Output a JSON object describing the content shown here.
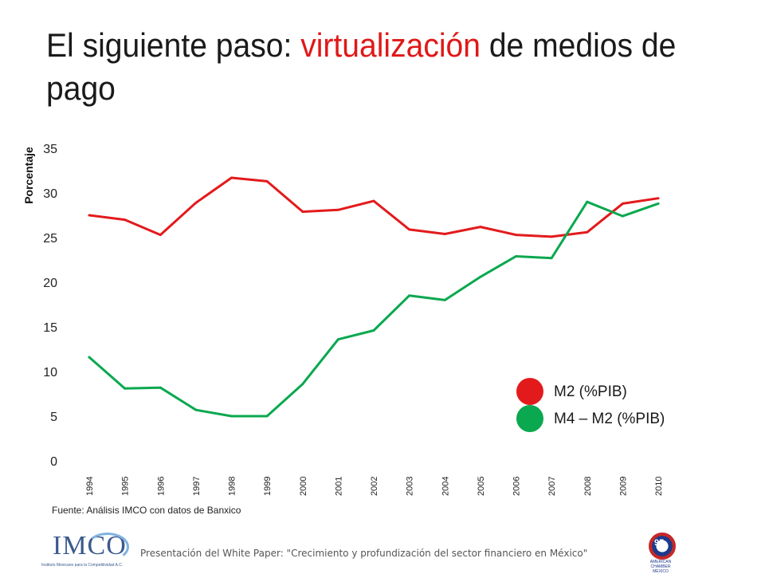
{
  "slide": {
    "title_before": "El siguiente paso: ",
    "title_accent": "virtualización",
    "title_after": " de medios de pago",
    "source": "Fuente: Análisis IMCO con datos de Banxico",
    "footer_text": "Presentación del White Paper: \"Crecimiento y profundización del sector financiero en México\""
  },
  "logos": {
    "left": {
      "name": "imco-logo",
      "word": "IMCO",
      "subtitle": "Instituto Mexicano para la Competitividad A.C."
    },
    "right": {
      "name": "american-chamber-logo",
      "number": "95",
      "line1": "AMERICAN CHAMBER",
      "line2": "MÉXICO"
    }
  },
  "chart_data": {
    "type": "line",
    "title": "",
    "xlabel": "",
    "ylabel": "Porcentaje",
    "ylim": [
      0,
      35
    ],
    "yticks": [
      0,
      5,
      10,
      15,
      20,
      25,
      30,
      35
    ],
    "grid": false,
    "legend_position": "right",
    "x": [
      "1994",
      "1995",
      "1996",
      "1997",
      "1998",
      "1999",
      "2000",
      "2001",
      "2002",
      "2003",
      "2004",
      "2005",
      "2006",
      "2007",
      "2008",
      "2009",
      "2010"
    ],
    "series": [
      {
        "name": "M2 (%PIB)",
        "color": "#e31a1c",
        "values": [
          27.5,
          27.0,
          25.3,
          28.9,
          31.7,
          31.3,
          27.9,
          28.1,
          29.1,
          25.9,
          25.4,
          26.2,
          25.3,
          25.1,
          25.6,
          28.8,
          29.4
        ]
      },
      {
        "name": "M4 – M2 (%PIB)",
        "color": "#0aa84f",
        "values": [
          11.6,
          8.1,
          8.2,
          5.7,
          5.0,
          5.0,
          8.6,
          13.6,
          14.6,
          18.5,
          18.0,
          20.6,
          22.9,
          22.7,
          29.0,
          27.4,
          28.8
        ]
      }
    ]
  }
}
